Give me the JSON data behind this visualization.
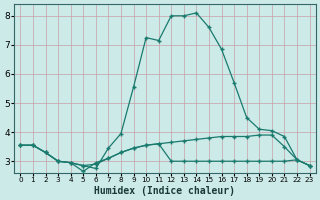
{
  "xlabel": "Humidex (Indice chaleur)",
  "background_color": "#cceae8",
  "grid_color": "#aad4d0",
  "line_color": "#1a7a6e",
  "xlim": [
    -0.5,
    23.5
  ],
  "ylim": [
    2.6,
    8.4
  ],
  "xticks": [
    0,
    1,
    2,
    3,
    4,
    5,
    6,
    7,
    8,
    9,
    10,
    11,
    12,
    13,
    14,
    15,
    16,
    17,
    18,
    19,
    20,
    21,
    22,
    23
  ],
  "yticks": [
    3,
    4,
    5,
    6,
    7,
    8
  ],
  "curve1_x": [
    0,
    1,
    2,
    3,
    4,
    5,
    6,
    7,
    8,
    9,
    10,
    11,
    12,
    13,
    14,
    15,
    16,
    17,
    18,
    19,
    20,
    21,
    22,
    23
  ],
  "curve1_y": [
    3.55,
    3.55,
    3.3,
    3.0,
    2.95,
    2.85,
    2.75,
    3.45,
    3.95,
    5.55,
    7.25,
    7.15,
    8.0,
    8.0,
    8.1,
    7.6,
    6.85,
    5.7,
    4.5,
    4.1,
    4.05,
    3.85,
    3.05,
    2.85
  ],
  "curve2_x": [
    0,
    1,
    2,
    3,
    4,
    5,
    6,
    7,
    8,
    9,
    10,
    11,
    12,
    13,
    14,
    15,
    16,
    17,
    18,
    19,
    20,
    21,
    22,
    23
  ],
  "curve2_y": [
    3.55,
    3.55,
    3.3,
    3.0,
    2.95,
    2.85,
    2.9,
    3.1,
    3.3,
    3.45,
    3.55,
    3.6,
    3.65,
    3.7,
    3.75,
    3.8,
    3.85,
    3.85,
    3.85,
    3.9,
    3.9,
    3.5,
    3.05,
    2.85
  ],
  "curve3_x": [
    0,
    1,
    2,
    3,
    4,
    5,
    6,
    7,
    8,
    9,
    10,
    11,
    12,
    13,
    14,
    15,
    16,
    17,
    18,
    19,
    20,
    21,
    22,
    23
  ],
  "curve3_y": [
    3.55,
    3.55,
    3.3,
    3.0,
    2.95,
    2.65,
    2.95,
    3.1,
    3.3,
    3.45,
    3.55,
    3.6,
    3.0,
    3.0,
    3.0,
    3.0,
    3.0,
    3.0,
    3.0,
    3.0,
    3.0,
    3.0,
    3.05,
    2.85
  ],
  "xlabel_fontsize": 7,
  "tick_fontsize_x": 5.2,
  "tick_fontsize_y": 6.5,
  "linewidth": 0.9,
  "markersize": 2.2
}
